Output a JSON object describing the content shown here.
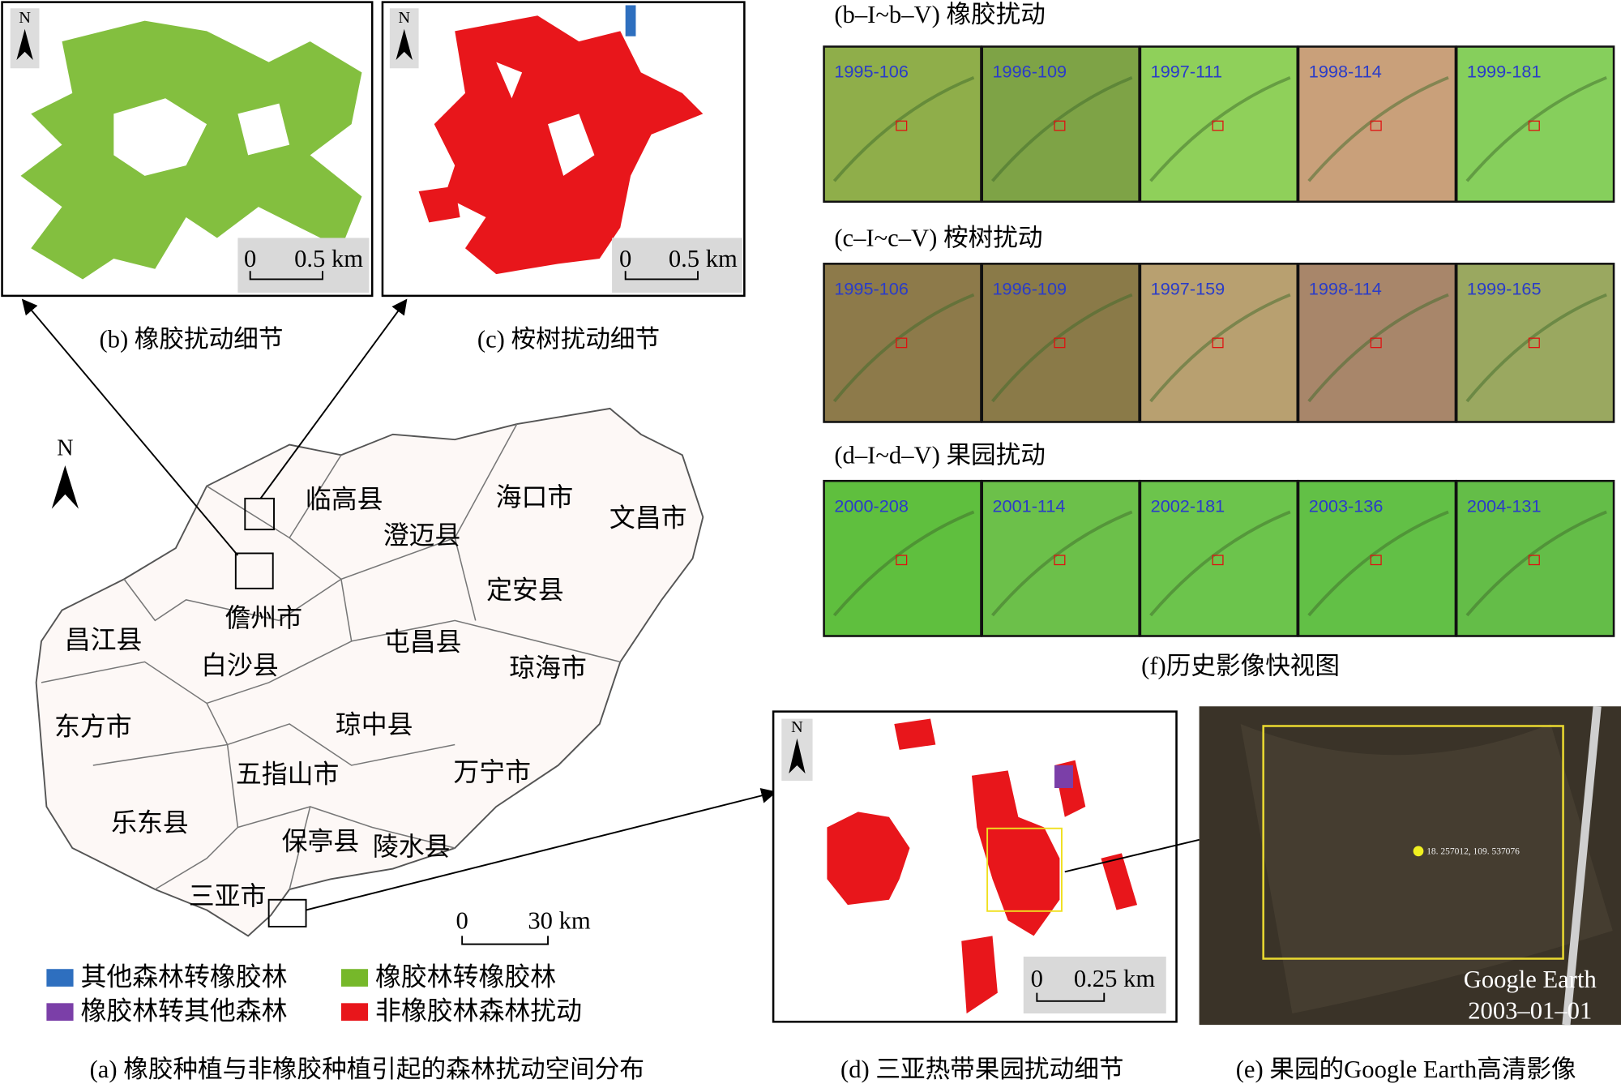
{
  "panels": {
    "b": {
      "north": "N",
      "scale_zero": "0",
      "scale_label": "0.5 km",
      "caption": "(b) 橡胶扰动细节"
    },
    "c": {
      "north": "N",
      "scale_zero": "0",
      "scale_label": "0.5 km",
      "caption": "(c) 桉树扰动细节"
    },
    "f": {
      "caption": "(f)历史影像快视图",
      "rows": [
        {
          "title": "(b–I~b–V) 橡胶扰动",
          "images": [
            "1995-106",
            "1996-109",
            "1997-111",
            "1998-114",
            "1999-181"
          ]
        },
        {
          "title": "(c–I~c–V) 桉树扰动",
          "images": [
            "1995-106",
            "1996-109",
            "1997-159",
            "1998-114",
            "1999-165"
          ]
        },
        {
          "title": "(d–I~d–V) 果园扰动",
          "images": [
            "2000-208",
            "2001-114",
            "2002-181",
            "2003-136",
            "2004-131"
          ]
        }
      ]
    },
    "a": {
      "north": "N",
      "scale_zero": "0",
      "scale_label": "30 km",
      "counties": [
        "临高县",
        "海口市",
        "文昌市",
        "澄迈县",
        "定安县",
        "儋州市",
        "屯昌县",
        "琼海市",
        "昌江县",
        "白沙县",
        "东方市",
        "琼中县",
        "五指山市",
        "万宁市",
        "乐东县",
        "保亭县",
        "陵水县",
        "三亚市"
      ],
      "legend": [
        {
          "label": "其他森林转橡胶林",
          "color": "#2e6fbf"
        },
        {
          "label": "橡胶林转其他森林",
          "color": "#7b3fa8"
        },
        {
          "label": "橡胶林转橡胶林",
          "color": "#76b82a"
        },
        {
          "label": "非橡胶林森林扰动",
          "color": "#e8161b"
        }
      ],
      "caption": "(a) 橡胶种植与非橡胶种植引起的森林扰动空间分布"
    },
    "d": {
      "north": "N",
      "scale_zero": "0",
      "scale_label": "0.25 km",
      "caption": "(d) 三亚热带果园扰动细节"
    },
    "e": {
      "coordinate": "18. 257012, 109. 537076",
      "source": "Google Earth",
      "date": "2003–01–01",
      "caption": "(e) 果园的Google Earth高清影像"
    }
  }
}
